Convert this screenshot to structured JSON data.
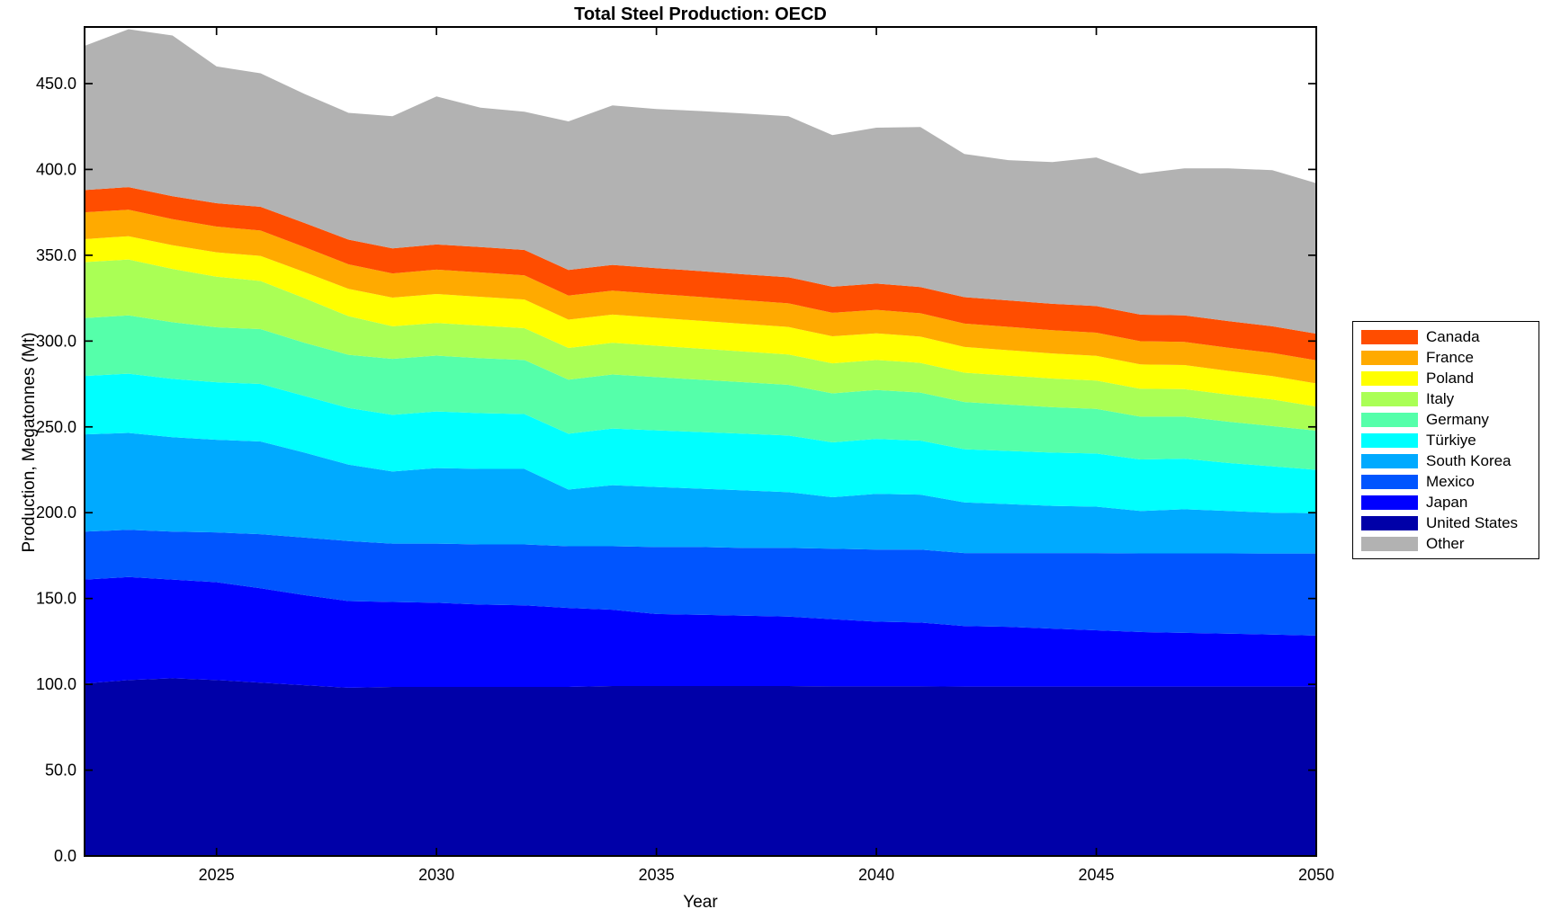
{
  "figure": {
    "title": "Total Steel Production: OECD",
    "xlabel": "Year",
    "ylabel": "Production, Megatonnes (Mt)"
  },
  "chart_data": {
    "type": "area",
    "stacked": true,
    "title": "Total Steel Production: OECD",
    "xlabel": "Year",
    "ylabel": "Production, Megatonnes (Mt)",
    "grid": false,
    "legend_position": "right-outside",
    "xlim": [
      2022,
      2050
    ],
    "ylim": [
      0,
      483
    ],
    "xticks": [
      2025,
      2030,
      2035,
      2040,
      2045,
      2050
    ],
    "yticks": [
      0,
      50,
      100,
      150,
      200,
      250,
      300,
      350,
      400,
      450
    ],
    "ytick_decimals": 1,
    "x": [
      2022,
      2023,
      2024,
      2025,
      2026,
      2027,
      2028,
      2029,
      2030,
      2031,
      2032,
      2033,
      2034,
      2035,
      2036,
      2037,
      2038,
      2039,
      2040,
      2041,
      2042,
      2043,
      2044,
      2045,
      2046,
      2047,
      2048,
      2049,
      2050
    ],
    "series": [
      {
        "name": "United States",
        "color": "#0000a8",
        "values": [
          100.5,
          102.5,
          103.5,
          102.5,
          101,
          99.5,
          98,
          98.5,
          98.5,
          98.5,
          98.5,
          98.5,
          99,
          99,
          99,
          99,
          99,
          98.8,
          98.8,
          98.8,
          98.7,
          98.7,
          98.7,
          98.7,
          98.7,
          98.7,
          98.7,
          98.7,
          98.7
        ]
      },
      {
        "name": "Japan",
        "color": "#0000ff",
        "values": [
          60.5,
          60,
          57.5,
          57,
          55,
          52.5,
          50.5,
          49.5,
          49,
          48,
          47.5,
          46,
          44.5,
          42,
          41.5,
          41,
          40.5,
          39.2,
          37.7,
          37.2,
          35.3,
          34.8,
          33.8,
          32.8,
          31.8,
          31.3,
          30.8,
          30.3,
          29.7
        ]
      },
      {
        "name": "Mexico",
        "color": "#0055ff",
        "values": [
          28,
          27.5,
          28,
          29,
          31.5,
          33.5,
          35,
          34,
          34.5,
          35,
          35.5,
          36,
          37,
          39,
          39.5,
          39.5,
          40,
          41,
          42,
          42.5,
          42.5,
          43,
          44,
          45,
          45.8,
          46.3,
          46.8,
          47.2,
          47.8
        ]
      },
      {
        "name": "South Korea",
        "color": "#00aaff",
        "values": [
          56.6,
          56.5,
          55,
          54,
          54,
          49.5,
          44.5,
          42,
          44,
          44,
          44,
          33,
          35.5,
          35,
          34,
          33.5,
          32.5,
          30,
          32.5,
          32,
          29.5,
          28.5,
          27.5,
          27,
          24.7,
          25.7,
          24.7,
          23.8,
          23.5
        ]
      },
      {
        "name": "Türkiye",
        "color": "#00ffff",
        "values": [
          34.1,
          34.5,
          34,
          33.5,
          33.5,
          33,
          33,
          33,
          33,
          32.5,
          32,
          32.5,
          33,
          33,
          33,
          33,
          33,
          32,
          32,
          31.5,
          31,
          31,
          31,
          31,
          30,
          29.5,
          28,
          27,
          25.3
        ]
      },
      {
        "name": "Germany",
        "color": "#55ffaa",
        "values": [
          33.7,
          34,
          33,
          32,
          32,
          31,
          31,
          32.6,
          32.5,
          32,
          31.5,
          31.5,
          31.5,
          31,
          30.5,
          30,
          29.5,
          28.5,
          28.5,
          28,
          27.5,
          27,
          26.5,
          26,
          25,
          24.5,
          24,
          23.5,
          22.8
        ]
      },
      {
        "name": "Italy",
        "color": "#aaff55",
        "values": [
          32.6,
          32.5,
          31,
          29.5,
          28,
          26,
          22.5,
          19,
          19,
          19,
          18.5,
          18.5,
          18.5,
          18.3,
          18.1,
          17.9,
          17.7,
          17.5,
          17.5,
          17.3,
          17.1,
          16.9,
          16.7,
          16.5,
          16.2,
          16,
          15.8,
          15.5,
          14
        ]
      },
      {
        "name": "Poland",
        "color": "#ffff00",
        "values": [
          13.4,
          13.6,
          13.8,
          14.2,
          14.6,
          15.2,
          15.9,
          16.7,
          16.9,
          16.8,
          16.7,
          16.5,
          16.4,
          16.3,
          16.2,
          16.1,
          16,
          15.8,
          15.5,
          15.3,
          15,
          14.8,
          14.6,
          14.4,
          14.2,
          14,
          13.8,
          13.6,
          13.5
        ]
      },
      {
        "name": "France",
        "color": "#ffaa00",
        "values": [
          15.6,
          15.4,
          15.2,
          15,
          14.8,
          14.5,
          14.3,
          14.1,
          14.2,
          14.2,
          14.1,
          14,
          14,
          13.9,
          13.9,
          13.8,
          13.8,
          13.7,
          13.7,
          13.6,
          13.6,
          13.6,
          13.5,
          13.5,
          13.5,
          13.5,
          13.5,
          13.5,
          13.5
        ]
      },
      {
        "name": "Canada",
        "color": "#ff4d00",
        "values": [
          13,
          13.2,
          13.4,
          13.6,
          13.8,
          14.1,
          14.4,
          14.6,
          14.7,
          14.8,
          14.8,
          14.9,
          15,
          15,
          15.1,
          15.1,
          15.2,
          15.2,
          15.3,
          15.3,
          15.4,
          15.4,
          15.4,
          15.5,
          15.5,
          15.5,
          15.5,
          15.5,
          15.5
        ]
      },
      {
        "name": "Other",
        "color": "#b2b2b2",
        "values": [
          84,
          92,
          93.6,
          79.7,
          77.8,
          75.2,
          73.9,
          77,
          86.2,
          81.2,
          80.5,
          86.6,
          92.9,
          92.7,
          93.2,
          93.7,
          93.8,
          88.3,
          90.8,
          93.2,
          83.4,
          81.7,
          82.6,
          86.6,
          82.1,
          85.6,
          89,
          91,
          87.7
        ]
      }
    ],
    "legend_order": [
      "Canada",
      "France",
      "Poland",
      "Italy",
      "Germany",
      "Türkiye",
      "South Korea",
      "Mexico",
      "Japan",
      "United States",
      "Other"
    ]
  },
  "colors": {
    "axis": "#000000",
    "background": "#ffffff"
  }
}
